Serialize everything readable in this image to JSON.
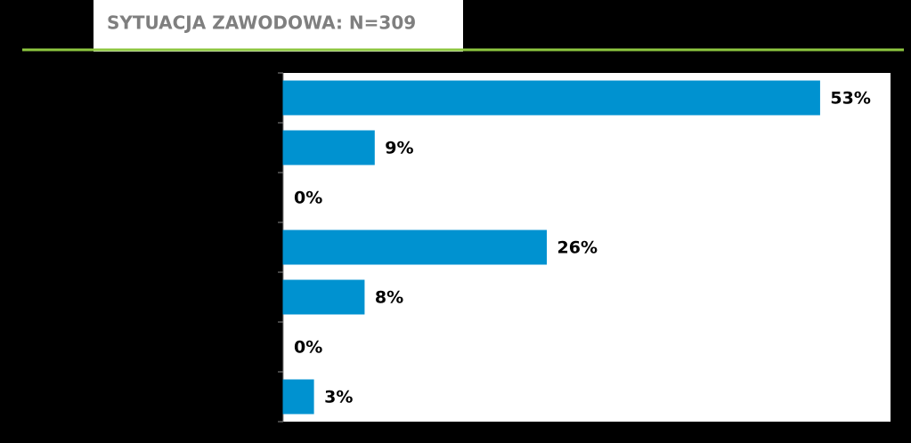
{
  "chart_data": {
    "type": "bar",
    "orientation": "horizontal",
    "title": "SYTUACJA ZAWODOWA: N=309",
    "categories": [
      null,
      null,
      null,
      null,
      null,
      null,
      null
    ],
    "values": [
      53,
      9,
      0,
      26,
      8,
      0,
      3
    ],
    "value_labels": [
      "53%",
      "9%",
      "0%",
      "26%",
      "8%",
      "0%",
      "3%"
    ],
    "color": "#0092d0",
    "xlim": [
      0,
      60
    ]
  }
}
